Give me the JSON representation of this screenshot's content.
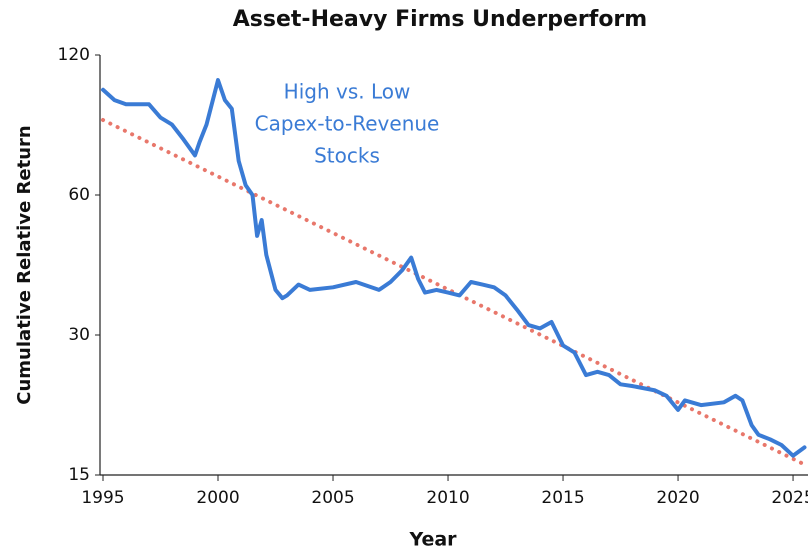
{
  "chart_data": {
    "type": "line",
    "title": "Asset-Heavy Firms Underperform",
    "x_label": "Year",
    "y_label": "Cumulative Relative Return",
    "annotation": [
      "High vs. Low",
      "Capex-to-Revenue",
      "Stocks"
    ],
    "annotation_color": "#3a7bd5",
    "yscale": "log",
    "xlim": [
      1995,
      2025.65
    ],
    "xticks": [
      1995,
      2000,
      2005,
      2010,
      2015,
      2020,
      2025
    ],
    "ylim": [
      15,
      120
    ],
    "yticks": [
      15,
      30,
      60,
      120
    ],
    "series": [
      {
        "color": "#3a7bd5",
        "dash": false,
        "x": [
          1995,
          1995.5,
          1996,
          1997,
          1997.5,
          1998,
          1998.5,
          1999,
          1999.2,
          1999.5,
          2000,
          2000.3,
          2000.6,
          2000.9,
          2001.2,
          2001.5,
          2001.7,
          2001.9,
          2002.1,
          2002.5,
          2002.8,
          2003,
          2003.5,
          2004,
          2005,
          2006,
          2007,
          2007.5,
          2008,
          2008.4,
          2008.7,
          2009,
          2009.5,
          2010,
          2010.5,
          2011,
          2011.5,
          2012,
          2012.5,
          2013,
          2013.5,
          2014,
          2014.5,
          2015,
          2015.5,
          2016,
          2016.5,
          2017,
          2017.5,
          2018,
          2019,
          2019.5,
          2020,
          2020.3,
          2021,
          2022,
          2022.5,
          2022.8,
          2023.2,
          2023.5,
          2024,
          2024.5,
          2025,
          2025.5
        ],
        "values": [
          101,
          96,
          94,
          94,
          88,
          85,
          79,
          73,
          78,
          85,
          106,
          96,
          92,
          71,
          63,
          60,
          49,
          53,
          44.6,
          37.5,
          36,
          36.5,
          38.5,
          37.5,
          38,
          39,
          37.5,
          39,
          41.3,
          44,
          39.6,
          37,
          37.5,
          37,
          36.5,
          39,
          38.5,
          38,
          36.5,
          34,
          31.5,
          31,
          32,
          28.5,
          27.5,
          24.6,
          25,
          24.6,
          23.5,
          23.3,
          22.8,
          22.2,
          20.7,
          21.7,
          21.2,
          21.5,
          22.2,
          21.7,
          19.2,
          18.3,
          17.9,
          17.4,
          16.5,
          17.2
        ]
      },
      {
        "color": "#e8776b",
        "dash": true,
        "x": [
          1995,
          2025.5
        ],
        "values": [
          87,
          15.8
        ]
      }
    ]
  }
}
